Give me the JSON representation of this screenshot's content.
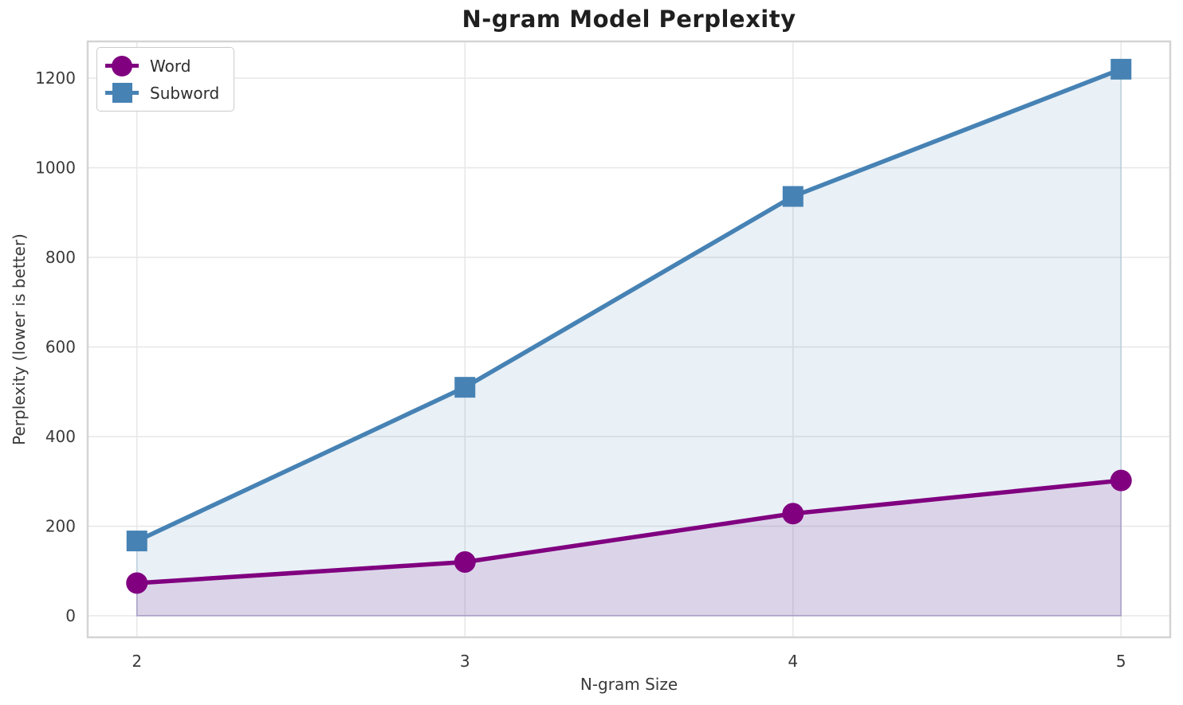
{
  "chart_data": {
    "type": "line",
    "title": "N-gram Model Perplexity",
    "xlabel": "N-gram Size",
    "ylabel": "Perplexity (lower is better)",
    "x": [
      2,
      3,
      4,
      5
    ],
    "xticks": [
      2,
      3,
      4,
      5
    ],
    "yticks": [
      0,
      200,
      400,
      600,
      800,
      1000,
      1200
    ],
    "xlim": [
      1.85,
      5.15
    ],
    "ylim": [
      -48,
      1282
    ],
    "grid": true,
    "legend_position": "upper left",
    "fill_alpha": 0.12,
    "grid_color": "#e8e8e8",
    "spine_color": "#d4d4d4",
    "tick_label_color": "#3a3a3a",
    "series": [
      {
        "name": "Word",
        "marker": "circle",
        "color": "#800080",
        "values": [
          73,
          120,
          228,
          302
        ]
      },
      {
        "name": "Subword",
        "marker": "square",
        "color": "#4682b4",
        "values": [
          167,
          510,
          936,
          1220
        ]
      }
    ]
  }
}
